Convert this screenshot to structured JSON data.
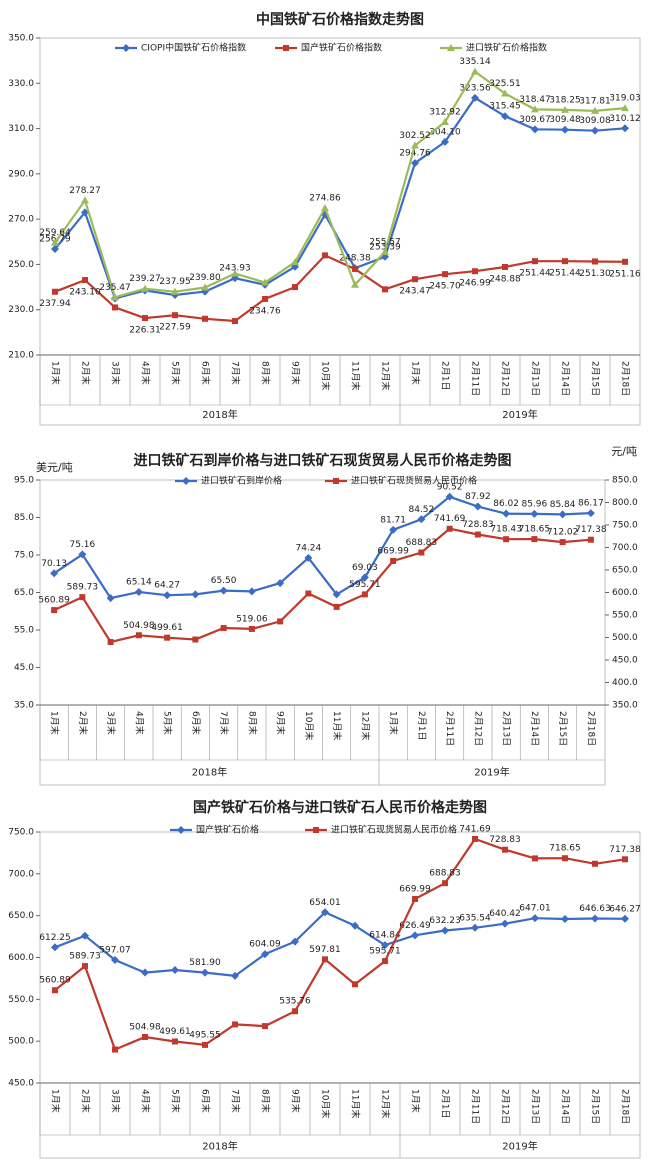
{
  "chart_data": [
    {
      "type": "line",
      "title": "中国铁矿石价格指数走势图",
      "categories": [
        "1月末",
        "2月末",
        "3月末",
        "4月末",
        "5月末",
        "6月末",
        "7月末",
        "8月末",
        "9月末",
        "10月末",
        "11月末",
        "12月末",
        "1月末",
        "2月1日",
        "2月11日",
        "2月12日",
        "2月13日",
        "2月14日",
        "2月15日",
        "2月18日"
      ],
      "groups": [
        "2018年",
        "2019年"
      ],
      "ylim": [
        210,
        350
      ],
      "yticks": [
        {
          "value": 210,
          "label": "210.0"
        },
        {
          "value": 230,
          "label": "230.0"
        },
        {
          "value": 250,
          "label": "250.0"
        },
        {
          "value": 270,
          "label": "270.0"
        },
        {
          "value": 290,
          "label": "290.0"
        },
        {
          "value": 310,
          "label": "310.0"
        },
        {
          "value": 330,
          "label": "330.0"
        },
        {
          "value": 350,
          "label": "350.0"
        }
      ],
      "series": [
        {
          "name": "CIOPI中国铁矿石价格指数",
          "color": "#3b6dc6",
          "marker": "diamond",
          "values": [
            256.79,
            273,
            235,
            238.5,
            236.5,
            238,
            243.93,
            241,
            249,
            272,
            248.38,
            253.39,
            294.76,
            304.1,
            323.56,
            315.45,
            309.67,
            309.48,
            309.08,
            310.12
          ],
          "value_labels": [
            "256.79",
            null,
            null,
            null,
            null,
            null,
            "243.93",
            null,
            null,
            null,
            "248.38",
            "253.39",
            "294.76",
            "304.10",
            "323.56",
            "315.45",
            "309.67",
            "309.48",
            "309.08",
            "310.12"
          ]
        },
        {
          "name": "国产铁矿石价格指数",
          "color": "#c0392b",
          "marker": "square",
          "values": [
            237.94,
            243.1,
            231,
            226.31,
            227.59,
            226,
            225,
            234.76,
            240,
            254,
            248,
            239,
            243.47,
            245.7,
            246.99,
            248.88,
            251.44,
            251.44,
            251.3,
            251.16
          ],
          "value_labels": [
            "237.94",
            "243.10",
            null,
            "226.31",
            "227.59",
            null,
            null,
            "234.76",
            null,
            null,
            null,
            null,
            "243.47",
            "245.70",
            "246.99",
            "248.88",
            "251.44",
            "251.44",
            "251.30",
            "251.16"
          ]
        },
        {
          "name": "进口铁矿石价格指数",
          "color": "#9bbb59",
          "marker": "triangle",
          "values": [
            259.64,
            278.27,
            235.47,
            239.27,
            237.95,
            239.8,
            246,
            242,
            251,
            274.86,
            241,
            255.57,
            302.52,
            312.92,
            335.14,
            325.51,
            318.47,
            318.25,
            317.81,
            319.03
          ],
          "value_labels": [
            "259.64",
            "278.27",
            "235.47",
            "239.27",
            "237.95",
            "239.80",
            null,
            null,
            null,
            "274.86",
            null,
            "255.57",
            "302.52",
            "312.92",
            "335.14",
            "325.51",
            "318.47",
            "318.25",
            "317.81",
            "319.03"
          ]
        }
      ]
    },
    {
      "type": "line",
      "title": "进口铁矿石到岸价格与进口铁矿石现货贸易人民币价格走势图",
      "ylabel": "美元/吨",
      "y2label": "元/吨",
      "categories": [
        "1月末",
        "2月末",
        "3月末",
        "4月末",
        "5月末",
        "6月末",
        "7月末",
        "8月末",
        "9月末",
        "10月末",
        "11月末",
        "12月末",
        "1月末",
        "2月1日",
        "2月11日",
        "2月12日",
        "2月13日",
        "2月14日",
        "2月15日",
        "2月18日"
      ],
      "groups": [
        "2018年",
        "2019年"
      ],
      "ylim": [
        35,
        95
      ],
      "yticks": [
        {
          "value": 35,
          "label": "35.0"
        },
        {
          "value": 45,
          "label": "45.0"
        },
        {
          "value": 55,
          "label": "55.0"
        },
        {
          "value": 65,
          "label": "65.0"
        },
        {
          "value": 75,
          "label": "75.0"
        },
        {
          "value": 85,
          "label": "85.0"
        },
        {
          "value": 95,
          "label": "95.0"
        }
      ],
      "y2lim": [
        350,
        850
      ],
      "y2ticks": [
        {
          "value": 350,
          "label": "350.0"
        },
        {
          "value": 400,
          "label": "400.0"
        },
        {
          "value": 450,
          "label": "450.0"
        },
        {
          "value": 500,
          "label": "500.0"
        },
        {
          "value": 550,
          "label": "550.0"
        },
        {
          "value": 600,
          "label": "600.0"
        },
        {
          "value": 650,
          "label": "650.0"
        },
        {
          "value": 700,
          "label": "700.0"
        },
        {
          "value": 750,
          "label": "750.0"
        },
        {
          "value": 800,
          "label": "800.0"
        },
        {
          "value": 850,
          "label": "850.0"
        }
      ],
      "series": [
        {
          "name": "进口铁矿石到岸价格",
          "color": "#3b6dc6",
          "marker": "diamond",
          "values": [
            70.13,
            75.16,
            63.5,
            65.14,
            64.27,
            64.5,
            65.5,
            65.3,
            67.5,
            74.24,
            64.5,
            69.03,
            81.71,
            84.52,
            90.52,
            87.92,
            86.02,
            85.96,
            85.84,
            86.17
          ],
          "value_labels": [
            "70.13",
            "75.16",
            null,
            "65.14",
            "64.27",
            null,
            "65.50",
            null,
            null,
            "74.24",
            null,
            "69.03",
            "81.71",
            "84.52",
            "90.52",
            "87.92",
            "86.02",
            "85.96",
            "85.84",
            "86.17"
          ]
        },
        {
          "name": "进口铁矿石现货贸易人民币价格",
          "color": "#c0392b",
          "marker": "square",
          "axis": "y2",
          "values": [
            560.89,
            589.73,
            490,
            504.98,
            499.61,
            495.55,
            521,
            519.06,
            535.76,
            597.81,
            568,
            595.71,
            669.99,
            688.83,
            741.69,
            728.83,
            718.43,
            718.65,
            712.02,
            717.38
          ],
          "value_labels": [
            "560.89",
            "589.73",
            null,
            "504.98",
            "499.61",
            null,
            null,
            "519.06",
            null,
            null,
            null,
            "595.71",
            "669.99",
            "688.83",
            "741.69",
            "728.83",
            "718.43",
            "718.65",
            "712.02",
            "717.38"
          ]
        }
      ]
    },
    {
      "type": "line",
      "title": "国产铁矿石价格与进口铁矿石人民币价格走势图",
      "categories": [
        "1月末",
        "2月末",
        "3月末",
        "4月末",
        "5月末",
        "6月末",
        "7月末",
        "8月末",
        "9月末",
        "10月末",
        "11月末",
        "12月末",
        "1月末",
        "2月1日",
        "2月11日",
        "2月12日",
        "2月13日",
        "2月14日",
        "2月15日",
        "2月18日"
      ],
      "groups": [
        "2018年",
        "2019年"
      ],
      "ylim": [
        450,
        750
      ],
      "yticks": [
        {
          "value": 450,
          "label": "450.0"
        },
        {
          "value": 500,
          "label": "500.0"
        },
        {
          "value": 550,
          "label": "550.0"
        },
        {
          "value": 600,
          "label": "600.0"
        },
        {
          "value": 650,
          "label": "650.0"
        },
        {
          "value": 700,
          "label": "700.0"
        },
        {
          "value": 750,
          "label": "750.0"
        }
      ],
      "series": [
        {
          "name": "国产铁矿石价格",
          "color": "#3b6dc6",
          "marker": "diamond",
          "values": [
            612.25,
            626,
            597.07,
            582,
            585,
            581.9,
            578,
            604.09,
            619,
            654.01,
            638,
            614.84,
            626.49,
            632.23,
            635.54,
            640.42,
            647.01,
            646,
            646.63,
            646.27
          ],
          "value_labels": [
            "612.25",
            null,
            "597.07",
            null,
            null,
            "581.90",
            null,
            "604.09",
            null,
            "654.01",
            null,
            "614.84",
            "626.49",
            "632.23",
            "635.54",
            "640.42",
            "647.01",
            null,
            "646.63",
            "646.27"
          ]
        },
        {
          "name": "进口铁矿石现货贸易人民币价格",
          "color": "#c0392b",
          "marker": "square",
          "values": [
            560.89,
            589.73,
            490,
            504.98,
            499.61,
            495.55,
            520,
            518,
            535.76,
            597.81,
            568,
            595.71,
            669.99,
            688.83,
            741.69,
            728.83,
            718.43,
            718.65,
            712.02,
            717.38
          ],
          "value_labels": [
            "560.89",
            "589.73",
            null,
            "504.98",
            "499.61",
            "495.55",
            null,
            null,
            "535.76",
            "597.81",
            null,
            "595.71",
            "669.99",
            "688.83",
            "741.69",
            "728.83",
            null,
            "718.65",
            null,
            "717.38"
          ]
        }
      ]
    }
  ]
}
